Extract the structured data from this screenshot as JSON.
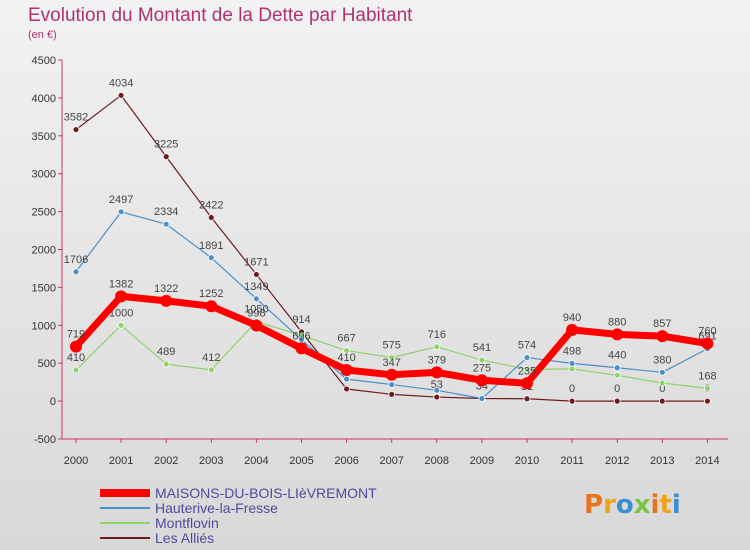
{
  "title": "Evolution du Montant de la Dette par Habitant",
  "unit": "(en €)",
  "logo": {
    "text": "Proxiti",
    "colors": [
      "#e8731c",
      "#f0a21a",
      "#3a8fd0",
      "#7cc242"
    ]
  },
  "chart_data": {
    "type": "line",
    "x": [
      "2000",
      "2001",
      "2002",
      "2003",
      "2004",
      "2005",
      "2006",
      "2007",
      "2008",
      "2009",
      "2010",
      "2011",
      "2012",
      "2013",
      "2014"
    ],
    "ylim": [
      -500,
      4500
    ],
    "yticks": [
      -500,
      0,
      500,
      1000,
      1500,
      2000,
      2500,
      3000,
      3500,
      4000,
      4500
    ],
    "grid": false,
    "legend_position": "bottom-left",
    "series": [
      {
        "name": "Les Alliés",
        "color": "#6e1b1b",
        "values": [
          3582,
          4034,
          3225,
          2422,
          1671,
          914,
          160,
          89,
          53,
          34,
          31,
          0,
          0,
          0,
          0
        ],
        "labels": [
          "3582",
          "4034",
          "3225",
          "2422",
          "1671",
          "914",
          "",
          "",
          "53",
          "34",
          "31",
          "0",
          "0",
          "0",
          "0"
        ]
      },
      {
        "name": "Montflovin",
        "color": "#8fd16a",
        "values": [
          410,
          1000,
          489,
          412,
          1050,
          866,
          667,
          575,
          716,
          541,
          419,
          425,
          340,
          239,
          168
        ],
        "labels": [
          "410",
          "1000",
          "489",
          "412",
          "1050",
          "",
          "667",
          "575",
          "716",
          "541",
          "",
          "",
          "",
          "",
          "168"
        ]
      },
      {
        "name": "Hauterive-la-Fresse",
        "color": "#4a8fc8",
        "values": [
          1706,
          2497,
          2334,
          1891,
          1349,
          810,
          290,
          218,
          142,
          34,
          574,
          498,
          440,
          380,
          691
        ],
        "labels": [
          "1706",
          "2497",
          "2334",
          "1891",
          "1349",
          "",
          "",
          "",
          "",
          "",
          "574",
          "498",
          "440",
          "380",
          "691"
        ]
      },
      {
        "name": "MAISONS-DU-BOIS-LIèVREMONT",
        "color": "#ff0000",
        "values": [
          719,
          1382,
          1322,
          1252,
          998,
          696,
          410,
          347,
          379,
          275,
          235,
          940,
          880,
          857,
          760
        ],
        "labels": [
          "719",
          "1382",
          "1322",
          "1252",
          "998",
          "696",
          "410",
          "347",
          "379",
          "275",
          "235",
          "940",
          "880",
          "857",
          "760"
        ]
      }
    ]
  },
  "legend": [
    {
      "label": "MAISONS-DU-BOIS-LIèVREMONT",
      "color": "#ff0000",
      "thick": true
    },
    {
      "label": "Hauterive-la-Fresse",
      "color": "#4a8fc8",
      "thick": false
    },
    {
      "label": "Montflovin",
      "color": "#8fd16a",
      "thick": false
    },
    {
      "label": "Les Alliés",
      "color": "#6e1b1b",
      "thick": false
    }
  ]
}
